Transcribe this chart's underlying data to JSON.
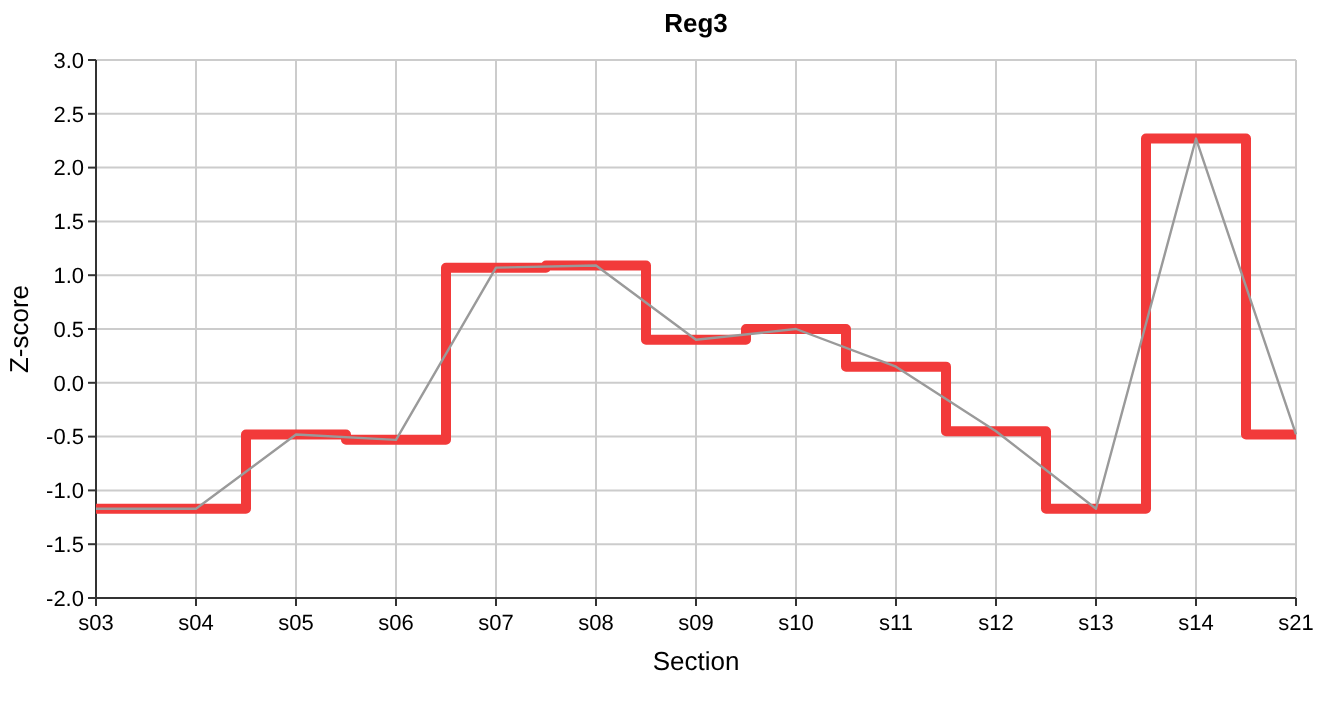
{
  "chart_data": {
    "type": "line",
    "title": "Reg3",
    "xlabel": "Section",
    "ylabel": "Z-score",
    "categories": [
      "s03",
      "s04",
      "s05",
      "s06",
      "s07",
      "s08",
      "s09",
      "s10",
      "s11",
      "s12",
      "s13",
      "s14",
      "s21"
    ],
    "series": [
      {
        "type": "step",
        "color": "#f23a3a",
        "values": [
          -1.17,
          -1.17,
          -0.48,
          -0.53,
          1.07,
          1.09,
          0.4,
          0.5,
          0.15,
          -0.45,
          -1.17,
          2.27,
          -0.48
        ]
      },
      {
        "type": "line",
        "color": "#9a9a9a",
        "values": [
          -1.17,
          -1.17,
          -0.48,
          -0.53,
          1.07,
          1.09,
          0.4,
          0.5,
          0.15,
          -0.45,
          -1.17,
          2.27,
          -0.48
        ]
      }
    ],
    "ylim": [
      -2,
      3
    ],
    "yticks": [
      {
        "value": -2,
        "label": "-2.0"
      },
      {
        "value": -1.5,
        "label": "-1.5"
      },
      {
        "value": -1,
        "label": "-1.0"
      },
      {
        "value": -0.5,
        "label": "-0.5"
      },
      {
        "value": 0,
        "label": "0.0"
      },
      {
        "value": 0.5,
        "label": "0.5"
      },
      {
        "value": 1,
        "label": "1.0"
      },
      {
        "value": 1.5,
        "label": "1.5"
      },
      {
        "value": 2,
        "label": "2.0"
      },
      {
        "value": 2.5,
        "label": "2.5"
      },
      {
        "value": 3,
        "label": "3.0"
      }
    ],
    "grid": true,
    "marker": "none"
  }
}
